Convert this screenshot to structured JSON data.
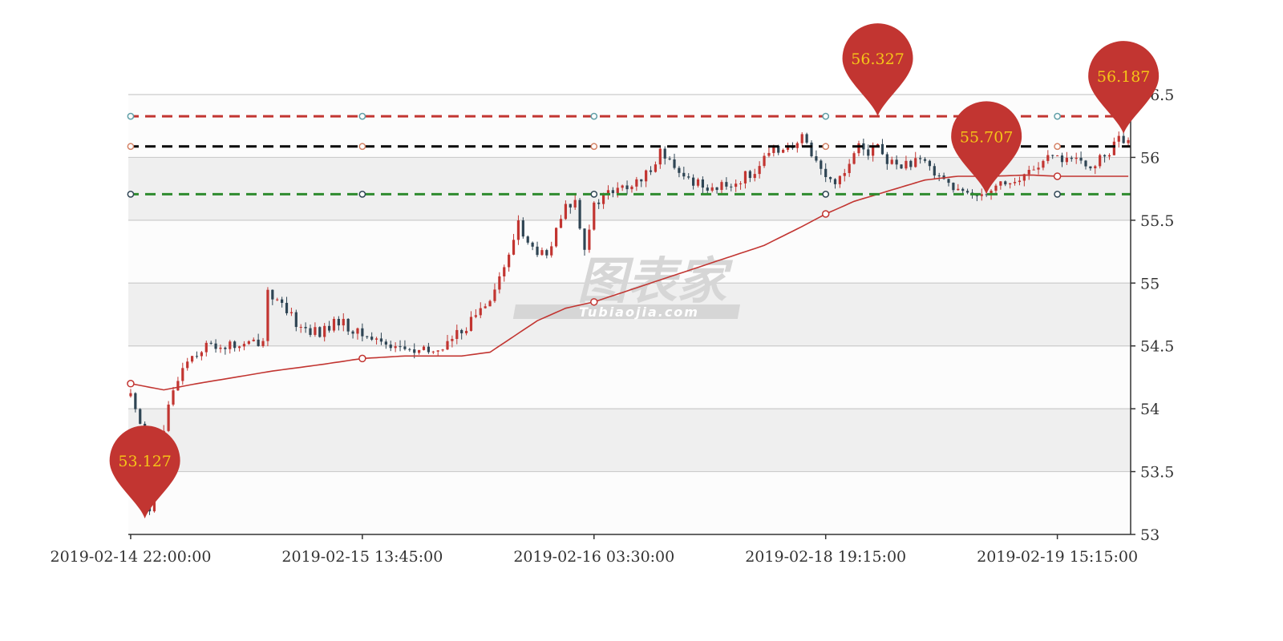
{
  "chart_data": {
    "type": "candlestick",
    "title": "",
    "ylim": [
      53,
      56.5
    ],
    "y_ticks": [
      "53",
      "53.5",
      "54",
      "54.5",
      "55",
      "55.5",
      "56",
      "56.5"
    ],
    "x_ticks": [
      {
        "index": 0,
        "label": "2019-02-14 22:00:00"
      },
      {
        "index": 49,
        "label": "2019-02-15 13:45:00"
      },
      {
        "index": 98,
        "label": "2019-02-16 03:30:00"
      },
      {
        "index": 147,
        "label": "2019-02-18 19:15:00"
      },
      {
        "index": 196,
        "label": "2019-02-19 15:15:00"
      }
    ],
    "candle_count": 212,
    "grid": true,
    "grid_bands": true,
    "colors": {
      "up": "#c23531",
      "down": "#2f4554",
      "ma": "#c23531",
      "pin": "#c23531",
      "pin_text": "#f5c518",
      "band": "#efefef",
      "grid": "#cccccc"
    },
    "keypoints": [
      [
        0,
        54.1
      ],
      [
        2,
        53.9
      ],
      [
        4,
        53.2
      ],
      [
        6,
        53.6
      ],
      [
        8,
        54.0
      ],
      [
        10,
        54.25
      ],
      [
        12,
        54.4
      ],
      [
        16,
        54.5
      ],
      [
        20,
        54.5
      ],
      [
        24,
        54.5
      ],
      [
        28,
        54.55
      ],
      [
        29,
        54.95
      ],
      [
        32,
        54.8
      ],
      [
        36,
        54.65
      ],
      [
        40,
        54.6
      ],
      [
        44,
        54.7
      ],
      [
        48,
        54.6
      ],
      [
        52,
        54.55
      ],
      [
        56,
        54.5
      ],
      [
        60,
        54.45
      ],
      [
        64,
        54.45
      ],
      [
        68,
        54.55
      ],
      [
        72,
        54.7
      ],
      [
        76,
        54.9
      ],
      [
        80,
        55.2
      ],
      [
        82,
        55.5
      ],
      [
        84,
        55.3
      ],
      [
        88,
        55.2
      ],
      [
        92,
        55.6
      ],
      [
        94,
        55.65
      ],
      [
        96,
        55.3
      ],
      [
        98,
        55.6
      ],
      [
        100,
        55.7
      ],
      [
        104,
        55.75
      ],
      [
        108,
        55.8
      ],
      [
        112,
        56.05
      ],
      [
        116,
        55.85
      ],
      [
        120,
        55.8
      ],
      [
        124,
        55.75
      ],
      [
        128,
        55.8
      ],
      [
        132,
        55.9
      ],
      [
        136,
        56.05
      ],
      [
        138,
        56.1
      ],
      [
        140,
        56.05
      ],
      [
        142,
        56.15
      ],
      [
        144,
        56.05
      ],
      [
        146,
        55.9
      ],
      [
        148,
        55.8
      ],
      [
        150,
        55.85
      ],
      [
        152,
        55.95
      ],
      [
        154,
        56.15
      ],
      [
        156,
        56.05
      ],
      [
        158,
        56.1
      ],
      [
        160,
        55.95
      ],
      [
        164,
        55.95
      ],
      [
        168,
        55.95
      ],
      [
        172,
        55.85
      ],
      [
        174,
        55.75
      ],
      [
        176,
        55.7
      ],
      [
        180,
        55.72
      ],
      [
        184,
        55.8
      ],
      [
        188,
        55.8
      ],
      [
        190,
        55.9
      ],
      [
        194,
        55.98
      ],
      [
        198,
        56.0
      ],
      [
        202,
        55.92
      ],
      [
        206,
        56.0
      ],
      [
        209,
        56.15
      ],
      [
        211,
        56.1
      ]
    ],
    "ma_line": {
      "color": "#c23531",
      "points": [
        [
          0,
          54.2
        ],
        [
          7,
          54.15
        ],
        [
          14,
          54.2
        ],
        [
          22,
          54.25
        ],
        [
          30,
          54.3
        ],
        [
          40,
          54.35
        ],
        [
          49,
          54.4
        ],
        [
          58,
          54.42
        ],
        [
          70,
          54.42
        ],
        [
          76,
          54.45
        ],
        [
          80,
          54.55
        ],
        [
          86,
          54.7
        ],
        [
          92,
          54.8
        ],
        [
          98,
          54.85
        ],
        [
          110,
          55.0
        ],
        [
          122,
          55.15
        ],
        [
          134,
          55.3
        ],
        [
          142,
          55.45
        ],
        [
          147,
          55.55
        ],
        [
          153,
          55.65
        ],
        [
          160,
          55.73
        ],
        [
          168,
          55.82
        ],
        [
          175,
          55.85
        ],
        [
          182,
          55.85
        ],
        [
          190,
          55.86
        ],
        [
          196,
          55.85
        ],
        [
          204,
          55.85
        ],
        [
          211,
          55.85
        ]
      ],
      "marker_indices": [
        0,
        49,
        98,
        147,
        196
      ]
    },
    "markLines": [
      {
        "name": "max",
        "value": 56.327,
        "color": "#c23531",
        "marker_color": "#61a0a8"
      },
      {
        "name": "average",
        "value": 56.087,
        "color": "#000000",
        "marker_color": "#d48265"
      },
      {
        "name": "min",
        "value": 55.707,
        "color": "#2e8b2e",
        "marker_color": "#2f4554"
      }
    ],
    "markPoints": [
      {
        "value": 53.127,
        "label": "53.127",
        "index": 3
      },
      {
        "value": 56.327,
        "label": "56.327",
        "index": 158
      },
      {
        "value": 55.707,
        "label": "55.707",
        "index": 181
      },
      {
        "value": 56.187,
        "label": "56.187",
        "index": 210
      }
    ]
  },
  "watermark": {
    "main": "图表家",
    "sub": "Tubiaojia.com"
  }
}
